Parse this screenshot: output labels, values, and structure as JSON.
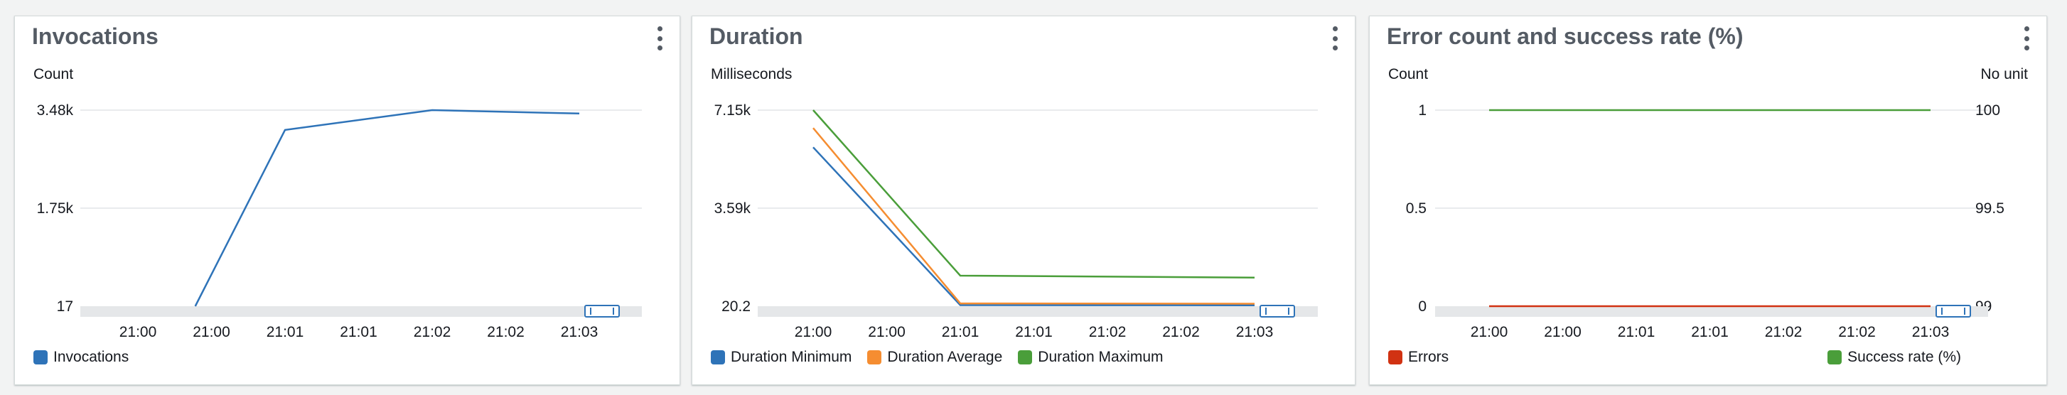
{
  "widgets": [
    {
      "title": "Invocations",
      "y_unit": "Count",
      "legend": [
        {
          "label": "Invocations",
          "color": "#2e73b8"
        }
      ]
    },
    {
      "title": "Duration",
      "y_unit": "Milliseconds",
      "legend": [
        {
          "label": "Duration Minimum",
          "color": "#2e73b8"
        },
        {
          "label": "Duration Average",
          "color": "#f58d31"
        },
        {
          "label": "Duration Maximum",
          "color": "#4a9e3a"
        }
      ]
    },
    {
      "title": "Error count and success rate (%)",
      "y_unit": "Count",
      "y2_unit": "No unit",
      "legend": [
        {
          "label": "Errors",
          "color": "#d13212"
        },
        {
          "label": "Success rate (%)",
          "color": "#4a9e3a"
        }
      ]
    }
  ],
  "icons": {
    "menu": "vertical-ellipsis-icon",
    "time_brush": "range-selector-icon"
  },
  "chart_data": [
    {
      "type": "line",
      "title": "Invocations",
      "ylabel": "Count",
      "x_ticks": [
        "21:00",
        "21:00",
        "21:01",
        "21:01",
        "21:02",
        "21:02",
        "21:03"
      ],
      "y_ticks": [
        "17",
        "1.75k",
        "3.48k"
      ],
      "ylim": [
        17,
        3480
      ],
      "grid": true,
      "legend_position": "bottom-left",
      "series": [
        {
          "name": "Invocations",
          "color": "#2e73b8",
          "x": [
            0.78,
            2,
            4,
            6
          ],
          "y": [
            17,
            3130,
            3480,
            3420
          ]
        }
      ]
    },
    {
      "type": "line",
      "title": "Duration",
      "ylabel": "Milliseconds",
      "x_ticks": [
        "21:00",
        "21:00",
        "21:01",
        "21:01",
        "21:02",
        "21:02",
        "21:03"
      ],
      "y_ticks": [
        "20.2",
        "3.59k",
        "7.15k"
      ],
      "ylim": [
        20.2,
        7150
      ],
      "grid": true,
      "legend_position": "bottom-left",
      "series": [
        {
          "name": "Duration Minimum",
          "color": "#2e73b8",
          "x": [
            0,
            2,
            6
          ],
          "y": [
            5800,
            60,
            55
          ]
        },
        {
          "name": "Duration Average",
          "color": "#f58d31",
          "x": [
            0,
            2,
            6
          ],
          "y": [
            6500,
            120,
            110
          ]
        },
        {
          "name": "Duration Maximum",
          "color": "#4a9e3a",
          "x": [
            0,
            2,
            6
          ],
          "y": [
            7150,
            1130,
            1060
          ]
        }
      ]
    },
    {
      "type": "line",
      "title": "Error count and success rate (%)",
      "ylabel": "Count",
      "y2label": "No unit",
      "x_ticks": [
        "21:00",
        "21:00",
        "21:01",
        "21:01",
        "21:02",
        "21:02",
        "21:03"
      ],
      "y_ticks": [
        "0",
        "0.5",
        "1"
      ],
      "y2_ticks": [
        "99",
        "99.5",
        "100"
      ],
      "ylim": [
        0,
        1
      ],
      "y2lim": [
        99,
        100
      ],
      "grid": true,
      "legend_position": "bottom",
      "series": [
        {
          "name": "Errors",
          "color": "#d13212",
          "axis": "left",
          "x": [
            0,
            6
          ],
          "y": [
            0,
            0
          ]
        },
        {
          "name": "Success rate (%)",
          "color": "#4a9e3a",
          "axis": "right",
          "x": [
            0,
            6
          ],
          "y": [
            100,
            100
          ]
        }
      ]
    }
  ]
}
